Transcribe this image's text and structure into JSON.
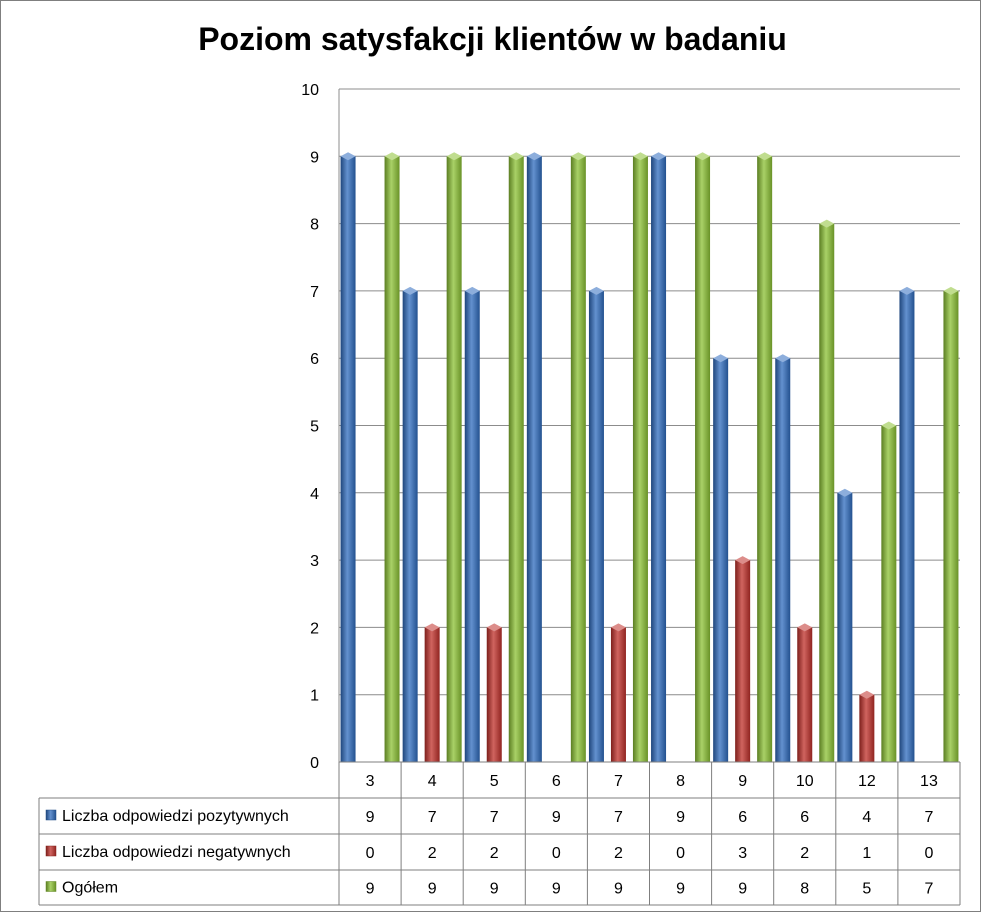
{
  "chart_data": {
    "type": "bar",
    "title": "Poziom satysfakcji klientów w badaniu",
    "categories": [
      "3",
      "4",
      "5",
      "6",
      "7",
      "8",
      "9",
      "10",
      "12",
      "13"
    ],
    "ylim": [
      0,
      10
    ],
    "yticks": [
      "0",
      "1",
      "2",
      "3",
      "4",
      "5",
      "6",
      "7",
      "8",
      "9",
      "10"
    ],
    "grid": true,
    "legend": "data-table-left",
    "series": [
      {
        "name": "Liczba odpowiedzi pozytywnych",
        "color": "#2f6cbf",
        "values": [
          9,
          7,
          7,
          9,
          7,
          9,
          6,
          6,
          4,
          7
        ]
      },
      {
        "name": "Liczba odpowiedzi negatywnych",
        "color": "#c0302a",
        "values": [
          0,
          2,
          2,
          0,
          2,
          0,
          3,
          2,
          1,
          0
        ]
      },
      {
        "name": "Ogółem",
        "color": "#8cc234",
        "values": [
          9,
          9,
          9,
          9,
          9,
          9,
          9,
          8,
          5,
          7
        ]
      }
    ]
  }
}
